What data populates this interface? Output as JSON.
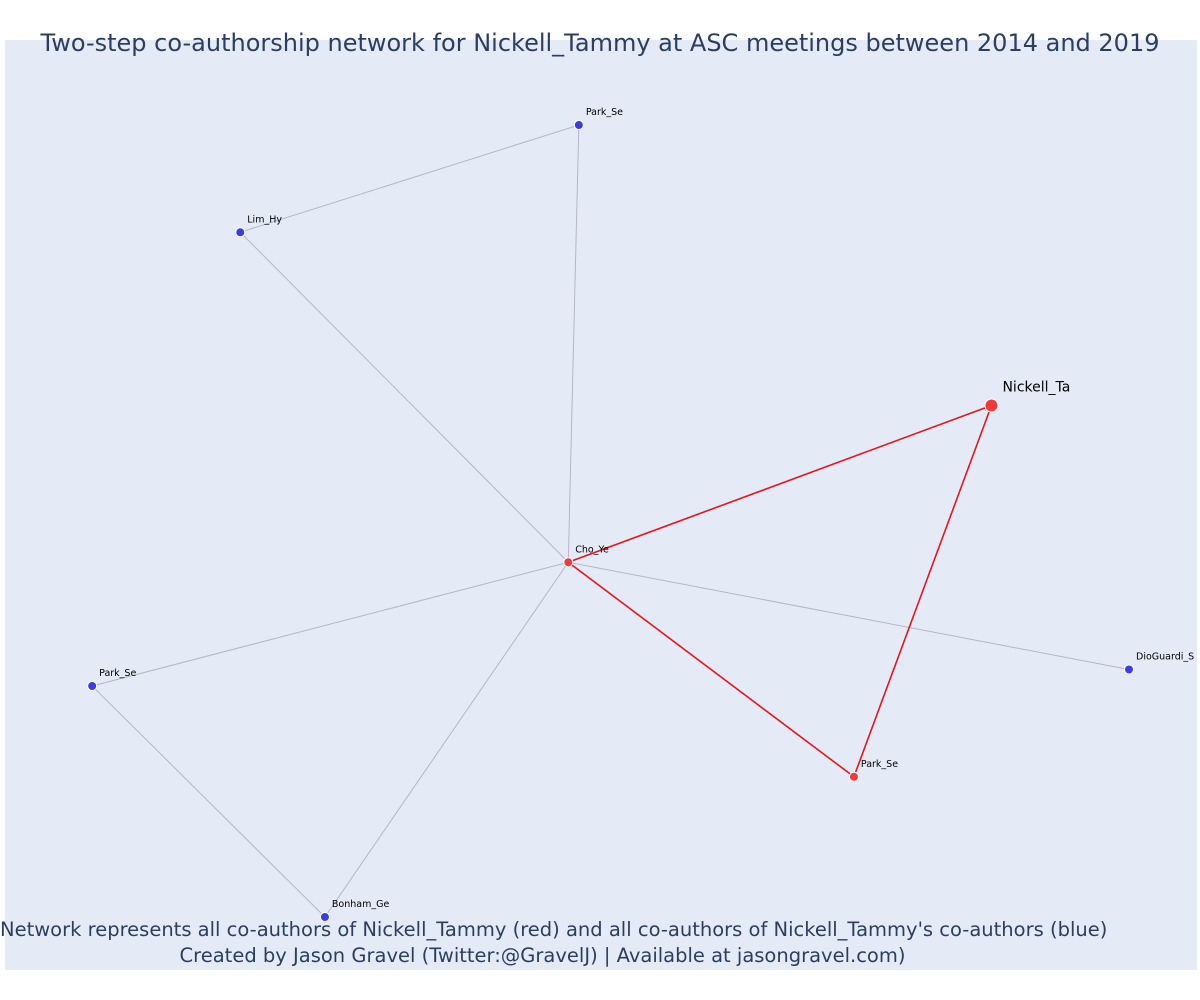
{
  "title": "Two-step co-authorship network for Nickell_Tammy at ASC meetings between 2014 and 2019",
  "caption": {
    "line1": "Network represents all co-authors of Nickell_Tammy (red) and all co-authors of Nickell_Tammy's co-authors (blue)",
    "line2": "Created by Jason Gravel (Twitter:@GravelJ) | Available at jasongravel.com)"
  },
  "colors": {
    "background": "#e5ebf6",
    "red_node": "#ef3b3b",
    "blue_node": "#3c3ce6",
    "red_edge": "#e8131b",
    "gray_edge": "#b3b6c6",
    "text": "#2a3f5f"
  },
  "chart_data": {
    "type": "network",
    "nodes": [
      {
        "id": "nickell",
        "label": "Nickell_Ta",
        "group": "focal",
        "color": "red",
        "x": 0.87,
        "y": 0.62
      },
      {
        "id": "cho",
        "label": "Cho_Ye",
        "group": "coauthor",
        "color": "red",
        "x": 0.47,
        "y": 0.43
      },
      {
        "id": "park_red",
        "label": "Park_Se",
        "group": "coauthor",
        "color": "red",
        "x": 0.74,
        "y": 0.17
      },
      {
        "id": "park_top",
        "label": "Park_Se",
        "group": "second",
        "color": "blue",
        "x": 0.48,
        "y": 0.96
      },
      {
        "id": "lim",
        "label": "Lim_Hy",
        "group": "second",
        "color": "blue",
        "x": 0.16,
        "y": 0.83
      },
      {
        "id": "park_left",
        "label": "Park_Se",
        "group": "second",
        "color": "blue",
        "x": 0.02,
        "y": 0.28
      },
      {
        "id": "bonham",
        "label": "Bonham_Ge",
        "group": "second",
        "color": "blue",
        "x": 0.24,
        "y": 0.0
      },
      {
        "id": "dioguardi",
        "label": "DioGuardi_S",
        "group": "second",
        "color": "blue",
        "x": 1.0,
        "y": 0.3
      }
    ],
    "edges": [
      {
        "source": "park_top",
        "target": "lim",
        "type": "gray"
      },
      {
        "source": "park_top",
        "target": "cho",
        "type": "gray"
      },
      {
        "source": "lim",
        "target": "cho",
        "type": "gray"
      },
      {
        "source": "cho",
        "target": "park_left",
        "type": "gray"
      },
      {
        "source": "cho",
        "target": "bonham",
        "type": "gray"
      },
      {
        "source": "cho",
        "target": "dioguardi",
        "type": "gray"
      },
      {
        "source": "park_left",
        "target": "bonham",
        "type": "gray"
      },
      {
        "source": "cho",
        "target": "nickell",
        "type": "red"
      },
      {
        "source": "cho",
        "target": "park_red",
        "type": "red"
      },
      {
        "source": "nickell",
        "target": "park_red",
        "type": "red"
      }
    ]
  }
}
